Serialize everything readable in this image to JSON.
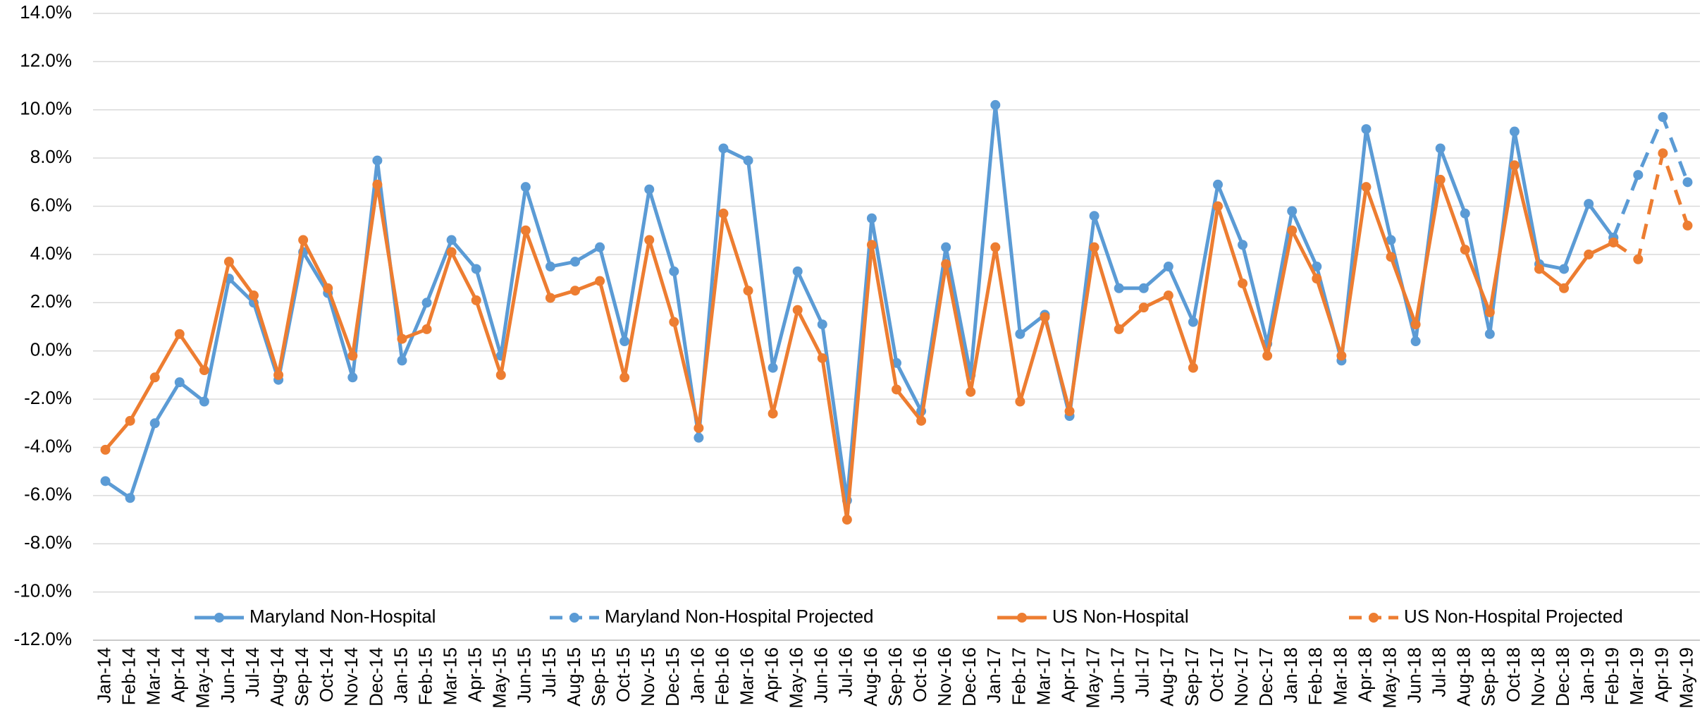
{
  "chart_data": {
    "type": "line",
    "categories": [
      "Jan-14",
      "Feb-14",
      "Mar-14",
      "Apr-14",
      "May-14",
      "Jun-14",
      "Jul-14",
      "Aug-14",
      "Sep-14",
      "Oct-14",
      "Nov-14",
      "Dec-14",
      "Jan-15",
      "Feb-15",
      "Mar-15",
      "Apr-15",
      "May-15",
      "Jun-15",
      "Jul-15",
      "Aug-15",
      "Sep-15",
      "Oct-15",
      "Nov-15",
      "Dec-15",
      "Jan-16",
      "Feb-16",
      "Mar-16",
      "Apr-16",
      "May-16",
      "Jun-16",
      "Jul-16",
      "Aug-16",
      "Sep-16",
      "Oct-16",
      "Nov-16",
      "Dec-16",
      "Jan-17",
      "Feb-17",
      "Mar-17",
      "Apr-17",
      "May-17",
      "Jun-17",
      "Jul-17",
      "Aug-17",
      "Sep-17",
      "Oct-17",
      "Nov-17",
      "Dec-17",
      "Jan-18",
      "Feb-18",
      "Mar-18",
      "Apr-18",
      "May-18",
      "Jun-18",
      "Jul-18",
      "Aug-18",
      "Sep-18",
      "Oct-18",
      "Nov-18",
      "Dec-18",
      "Jan-19",
      "Feb-19",
      "Mar-19",
      "Apr-19",
      "May-19"
    ],
    "series": [
      {
        "name": "Maryland Non-Hospital",
        "color": "#5b9bd5",
        "dashed": false,
        "values": [
          -5.4,
          -6.1,
          -3.0,
          -1.3,
          -2.1,
          3.0,
          2.0,
          -1.2,
          4.1,
          2.4,
          -1.1,
          7.9,
          -0.4,
          2.0,
          4.6,
          3.4,
          -0.2,
          6.8,
          3.5,
          3.7,
          4.3,
          0.4,
          6.7,
          3.3,
          -3.6,
          8.4,
          7.9,
          -0.7,
          3.3,
          1.1,
          -6.2,
          5.5,
          -0.5,
          -2.5,
          4.3,
          -1.0,
          10.2,
          0.7,
          1.5,
          -2.7,
          5.6,
          2.6,
          2.6,
          3.5,
          1.2,
          6.9,
          4.4,
          0.3,
          5.8,
          3.5,
          -0.4,
          9.2,
          4.6,
          0.4,
          8.4,
          5.7,
          0.7,
          9.1,
          3.6,
          3.4,
          6.1,
          4.7,
          null,
          null,
          null
        ]
      },
      {
        "name": "Maryland Non-Hospital Projected",
        "color": "#5b9bd5",
        "dashed": true,
        "values": [
          null,
          null,
          null,
          null,
          null,
          null,
          null,
          null,
          null,
          null,
          null,
          null,
          null,
          null,
          null,
          null,
          null,
          null,
          null,
          null,
          null,
          null,
          null,
          null,
          null,
          null,
          null,
          null,
          null,
          null,
          null,
          null,
          null,
          null,
          null,
          null,
          null,
          null,
          null,
          null,
          null,
          null,
          null,
          null,
          null,
          null,
          null,
          null,
          null,
          null,
          null,
          null,
          null,
          null,
          null,
          null,
          null,
          null,
          null,
          null,
          null,
          4.7,
          7.3,
          9.7,
          7.0
        ]
      },
      {
        "name": "US Non-Hospital",
        "color": "#ed7d31",
        "dashed": false,
        "values": [
          -4.1,
          -2.9,
          -1.1,
          0.7,
          -0.8,
          3.7,
          2.3,
          -1.0,
          4.6,
          2.6,
          -0.2,
          6.9,
          0.5,
          0.9,
          4.1,
          2.1,
          -1.0,
          5.0,
          2.2,
          2.5,
          2.9,
          -1.1,
          4.6,
          1.2,
          -3.2,
          5.7,
          2.5,
          -2.6,
          1.7,
          -0.3,
          -7.0,
          4.4,
          -1.6,
          -2.9,
          3.6,
          -1.7,
          4.3,
          -2.1,
          1.4,
          -2.5,
          4.3,
          0.9,
          1.8,
          2.3,
          -0.7,
          6.0,
          2.8,
          -0.2,
          5.0,
          3.0,
          -0.2,
          6.8,
          3.9,
          1.1,
          7.1,
          4.2,
          1.6,
          7.7,
          3.4,
          2.6,
          4.0,
          4.5,
          null,
          null,
          null
        ]
      },
      {
        "name": "US Non-Hospital Projected",
        "color": "#ed7d31",
        "dashed": true,
        "values": [
          null,
          null,
          null,
          null,
          null,
          null,
          null,
          null,
          null,
          null,
          null,
          null,
          null,
          null,
          null,
          null,
          null,
          null,
          null,
          null,
          null,
          null,
          null,
          null,
          null,
          null,
          null,
          null,
          null,
          null,
          null,
          null,
          null,
          null,
          null,
          null,
          null,
          null,
          null,
          null,
          null,
          null,
          null,
          null,
          null,
          null,
          null,
          null,
          null,
          null,
          null,
          null,
          null,
          null,
          null,
          null,
          null,
          null,
          null,
          null,
          null,
          4.5,
          3.8,
          8.2,
          5.2
        ]
      }
    ],
    "ylim": [
      -12,
      14
    ],
    "yticks": [
      {
        "value": -12,
        "label": "-12.0%"
      },
      {
        "value": -10,
        "label": "-10.0%"
      },
      {
        "value": -8,
        "label": "-8.0%"
      },
      {
        "value": -6,
        "label": "-6.0%"
      },
      {
        "value": -4,
        "label": "-4.0%"
      },
      {
        "value": -2,
        "label": "-2.0%"
      },
      {
        "value": 0,
        "label": "0.0%"
      },
      {
        "value": 2,
        "label": "2.0%"
      },
      {
        "value": 4,
        "label": "4.0%"
      },
      {
        "value": 6,
        "label": "6.0%"
      },
      {
        "value": 8,
        "label": "8.0%"
      },
      {
        "value": 10,
        "label": "10.0%"
      },
      {
        "value": 12,
        "label": "12.0%"
      },
      {
        "value": 14,
        "label": "14.0%"
      }
    ],
    "grid": true,
    "legend": "bottom"
  }
}
